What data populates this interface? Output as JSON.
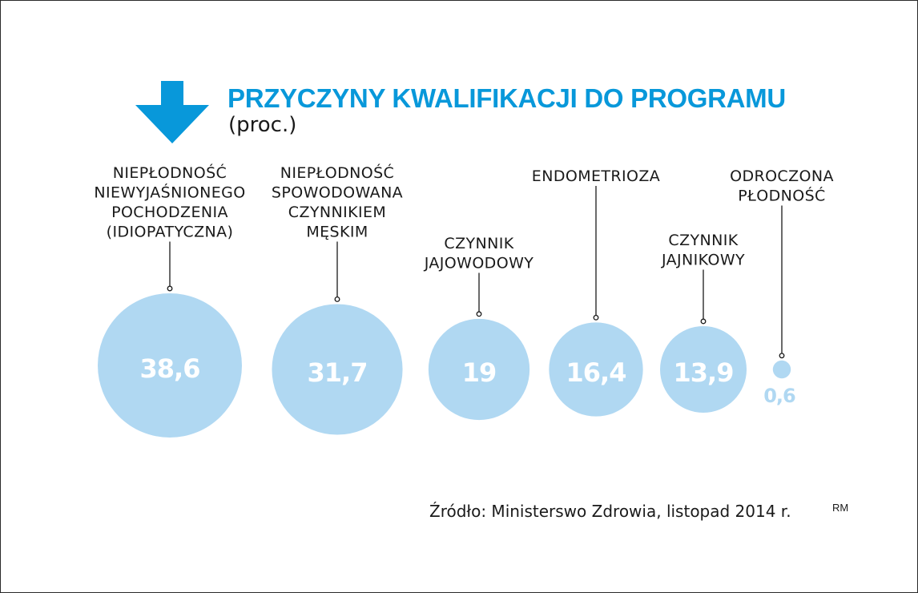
{
  "header": {
    "title": "PRZYCZYNY KWALIFIKACJI DO PROGRAMU",
    "subtitle": "(proc.)"
  },
  "footer": {
    "source": "Źródło: Ministerswo Zdrowia, listopad 2014 r.",
    "credit": "RM"
  },
  "colors": {
    "accent": "#0898da",
    "bubble": "#b0d8f2",
    "value_text": "#ffffff",
    "small_value_text": "#b0d8f2",
    "label_text": "#1a1a1a"
  },
  "icons": {
    "title_marker": "arrow-down-icon"
  },
  "chart_data": {
    "type": "bubble",
    "title": "PRZYCZYNY KWALIFIKACJI DO PROGRAMU",
    "subtitle": "(proc.)",
    "categories": [
      [
        "NIEPŁODNOŚĆ",
        "NIEWYJAŚNIONEGO",
        "POCHODZENIA",
        "(IDIOPATYCZNA)"
      ],
      [
        "NIEPŁODNOŚĆ",
        "SPOWODOWANA",
        "CZYNNIKIEM",
        "MĘSKIM"
      ],
      [
        "CZYNNIK",
        "JAJOWODOWY"
      ],
      [
        "ENDOMETRIOZA"
      ],
      [
        "CZYNNIK",
        "JAJNIKOWY"
      ],
      [
        "ODROCZONA",
        "PŁODNOŚĆ"
      ]
    ],
    "values": [
      38.6,
      31.7,
      19,
      16.4,
      13.9,
      0.6
    ],
    "value_labels": [
      "38,6",
      "31,7",
      "19",
      "16,4",
      "13,9",
      "0,6"
    ],
    "unit": "proc.",
    "legend": "none",
    "grid": false
  }
}
